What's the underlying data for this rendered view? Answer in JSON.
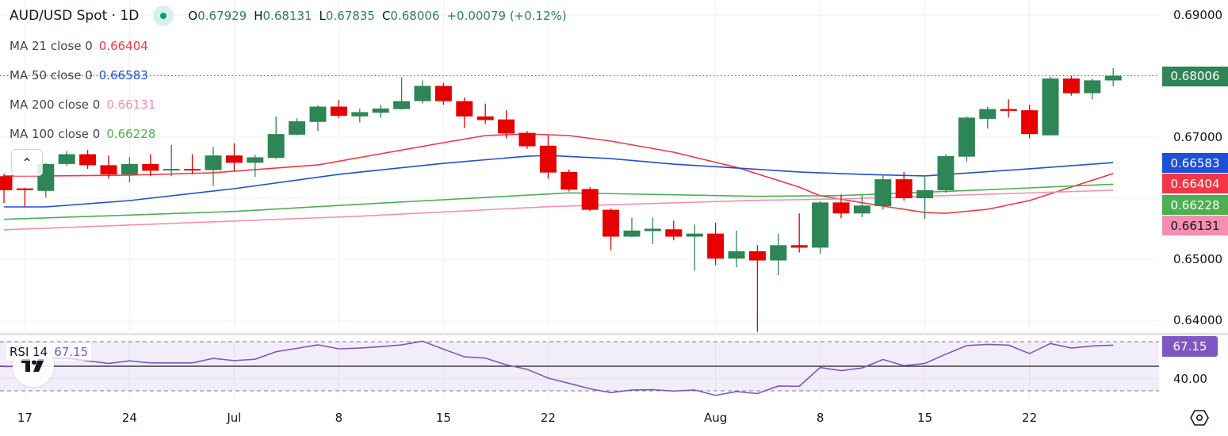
{
  "header": {
    "title": "AUD/USD Spot · 1D",
    "status_color": "#089981",
    "ohlc": [
      {
        "key": "O",
        "value": "0.67929"
      },
      {
        "key": "H",
        "value": "0.68131"
      },
      {
        "key": "L",
        "value": "0.67835"
      },
      {
        "key": "C",
        "value": "0.68006"
      }
    ],
    "change": "+0.00079 (+0.12%)"
  },
  "legend": [
    {
      "label": "MA 21 close 0",
      "value": "0.66404",
      "color": "#f23645"
    },
    {
      "label": "MA 50 close 0",
      "value": "0.66583",
      "color": "#1e4fd8"
    },
    {
      "label": "MA 200 close 0",
      "value": "0.66131",
      "color": "#f48fb1"
    },
    {
      "label": "MA 100 close 0",
      "value": "0.66228",
      "color": "#4caf50"
    }
  ],
  "collapse_icon": "chevron-up",
  "rsi_legend": {
    "label": "RSI 14",
    "value": "67.15"
  },
  "price_boxes": {
    "close": {
      "value": "0.68006",
      "color": "#2e8555"
    },
    "ma50": {
      "value": "0.66583",
      "color": "#1e4fd8"
    },
    "ma21": {
      "value": "0.66404",
      "color": "#f23645"
    },
    "ma100": {
      "value": "0.66228",
      "color": "#4caf50"
    },
    "ma200": {
      "value": "0.66131",
      "color": "#f48fb1"
    },
    "rsi": {
      "value": "67.15",
      "color": "#7e57c2"
    }
  },
  "settings_icon": "gear-hexagon",
  "logo_text": "TV",
  "chart_data": {
    "type": "candlestick",
    "title": "AUD/USD Spot · 1D",
    "up_color": "#2e8555",
    "down_color": "#e60000",
    "y_ticks": [
      0.69,
      0.67,
      0.65,
      0.64
    ],
    "y_tick_labels": [
      "0.69000",
      "0.67000",
      "0.65000",
      "0.64000"
    ],
    "y_range": [
      0.6355,
      0.6924
    ],
    "grid": true,
    "x_ticks": [
      {
        "label": "17",
        "date": "Jun 17"
      },
      {
        "label": "24",
        "date": "Jun 24"
      },
      {
        "label": "Jul",
        "date": "Jul 1"
      },
      {
        "label": "8",
        "date": "Jul 8"
      },
      {
        "label": "15",
        "date": "Jul 15"
      },
      {
        "label": "22",
        "date": "Jul 22"
      },
      {
        "label": "Aug",
        "date": "Aug 1"
      },
      {
        "label": "8",
        "date": "Aug 8"
      },
      {
        "label": "15",
        "date": "Aug 15"
      },
      {
        "label": "22",
        "date": "Aug 22"
      }
    ],
    "candles_columns": [
      "date",
      "open",
      "high",
      "low",
      "close"
    ],
    "candles": [
      [
        "Jun 14",
        0.6636,
        0.664,
        0.6592,
        0.6613
      ],
      [
        "Jun 17",
        0.6616,
        0.6617,
        0.6585,
        0.6613
      ],
      [
        "Jun 18",
        0.6612,
        0.6657,
        0.6601,
        0.6656
      ],
      [
        "Jun 19",
        0.6656,
        0.6677,
        0.6653,
        0.6672
      ],
      [
        "Jun 20",
        0.6672,
        0.6679,
        0.6648,
        0.6654
      ],
      [
        "Jun 21",
        0.6654,
        0.667,
        0.6632,
        0.6639
      ],
      [
        "Jun 24",
        0.6639,
        0.6667,
        0.6626,
        0.6656
      ],
      [
        "Jun 25",
        0.6656,
        0.6672,
        0.6636,
        0.6645
      ],
      [
        "Jun 26",
        0.6647,
        0.6687,
        0.6636,
        0.6648
      ],
      [
        "Jun 27",
        0.6648,
        0.6672,
        0.6639,
        0.6647
      ],
      [
        "Jun 28",
        0.6646,
        0.6684,
        0.662,
        0.667
      ],
      [
        "Jul 1",
        0.667,
        0.669,
        0.6644,
        0.6658
      ],
      [
        "Jul 2",
        0.6658,
        0.6671,
        0.6635,
        0.6667
      ],
      [
        "Jul 3",
        0.6666,
        0.6734,
        0.6664,
        0.6705
      ],
      [
        "Jul 4",
        0.6704,
        0.6731,
        0.6703,
        0.6726
      ],
      [
        "Jul 5",
        0.6725,
        0.6752,
        0.671,
        0.675
      ],
      [
        "Jul 8",
        0.675,
        0.6761,
        0.6731,
        0.6735
      ],
      [
        "Jul 9",
        0.6734,
        0.6747,
        0.6724,
        0.6741
      ],
      [
        "Jul 10",
        0.674,
        0.6753,
        0.6732,
        0.6747
      ],
      [
        "Jul 11",
        0.6746,
        0.6798,
        0.6745,
        0.6759
      ],
      [
        "Jul 12",
        0.6759,
        0.6793,
        0.6755,
        0.6784
      ],
      [
        "Jul 15",
        0.6784,
        0.6789,
        0.6753,
        0.6759
      ],
      [
        "Jul 16",
        0.6759,
        0.6765,
        0.6715,
        0.6734
      ],
      [
        "Jul 17",
        0.6734,
        0.6755,
        0.6722,
        0.6728
      ],
      [
        "Jul 18",
        0.6729,
        0.6744,
        0.6698,
        0.6706
      ],
      [
        "Jul 19",
        0.6707,
        0.671,
        0.6681,
        0.6685
      ],
      [
        "Jul 22",
        0.6686,
        0.6703,
        0.6632,
        0.6642
      ],
      [
        "Jul 23",
        0.6643,
        0.6647,
        0.6611,
        0.6614
      ],
      [
        "Jul 24",
        0.6615,
        0.6618,
        0.6579,
        0.6581
      ],
      [
        "Jul 25",
        0.6581,
        0.6583,
        0.6515,
        0.6537
      ],
      [
        "Jul 26",
        0.6537,
        0.6568,
        0.6536,
        0.6547
      ],
      [
        "Jul 29",
        0.6546,
        0.6568,
        0.6525,
        0.655
      ],
      [
        "Jul 30",
        0.6549,
        0.6563,
        0.6531,
        0.6537
      ],
      [
        "Jul 31",
        0.6537,
        0.6557,
        0.6481,
        0.6542
      ],
      [
        "Aug 1",
        0.6542,
        0.656,
        0.649,
        0.6501
      ],
      [
        "Aug 2",
        0.6501,
        0.6547,
        0.6487,
        0.6513
      ],
      [
        "Aug 5",
        0.6513,
        0.6523,
        0.6381,
        0.6498
      ],
      [
        "Aug 6",
        0.6498,
        0.6542,
        0.6474,
        0.6523
      ],
      [
        "Aug 7",
        0.6523,
        0.6575,
        0.6511,
        0.6519
      ],
      [
        "Aug 8",
        0.6519,
        0.6595,
        0.6509,
        0.6593
      ],
      [
        "Aug 9",
        0.6593,
        0.6606,
        0.6567,
        0.6575
      ],
      [
        "Aug 12",
        0.6575,
        0.6605,
        0.6569,
        0.6588
      ],
      [
        "Aug 13",
        0.6587,
        0.6639,
        0.6581,
        0.6631
      ],
      [
        "Aug 14",
        0.6631,
        0.6643,
        0.6596,
        0.66
      ],
      [
        "Aug 15",
        0.66,
        0.6635,
        0.6566,
        0.6613
      ],
      [
        "Aug 16",
        0.6613,
        0.6672,
        0.6609,
        0.6669
      ],
      [
        "Aug 19",
        0.6668,
        0.6734,
        0.666,
        0.6732
      ],
      [
        "Aug 20",
        0.673,
        0.675,
        0.6714,
        0.6746
      ],
      [
        "Aug 21",
        0.6746,
        0.6762,
        0.6732,
        0.6743
      ],
      [
        "Aug 22",
        0.6744,
        0.6753,
        0.6698,
        0.6705
      ],
      [
        "Aug 23",
        0.6703,
        0.6799,
        0.6703,
        0.6796
      ],
      [
        "Aug 26",
        0.6796,
        0.68,
        0.6768,
        0.6772
      ],
      [
        "Aug 27",
        0.6772,
        0.6796,
        0.6762,
        0.6793
      ],
      [
        "Aug 28",
        0.67929,
        0.68131,
        0.67835,
        0.68006
      ]
    ],
    "last_close": 0.68006,
    "moving_averages": [
      {
        "name": "MA 21 close 0",
        "color": "#f23645",
        "points": [
          [
            "Jun 14",
            0.66364
          ],
          [
            "Jun 18",
            0.66364
          ],
          [
            "Jun 24",
            0.66377
          ],
          [
            "Jun 28",
            0.66416
          ],
          [
            "Jul 5",
            0.66545
          ],
          [
            "Jul 10",
            0.66727
          ],
          [
            "Jul 15",
            0.66909
          ],
          [
            "Jul 17",
            0.67026
          ],
          [
            "Jul 19",
            0.67052
          ],
          [
            "Jul 23",
            0.67026
          ],
          [
            "Jul 25",
            0.66935
          ],
          [
            "Jul 30",
            0.66753
          ],
          [
            "Aug 2",
            0.66506
          ],
          [
            "Aug 7",
            0.66182
          ],
          [
            "Aug 8",
            0.66039
          ],
          [
            "Aug 13",
            0.6587
          ],
          [
            "Aug 15",
            0.65766
          ],
          [
            "Aug 16",
            0.65753
          ],
          [
            "Aug 20",
            0.65818
          ],
          [
            "Aug 22",
            0.65961
          ],
          [
            "Aug 28",
            0.66404
          ]
        ]
      },
      {
        "name": "MA 50 close 0",
        "color": "#1e4fd8",
        "points": [
          [
            "Jun 14",
            0.65857
          ],
          [
            "Jun 18",
            0.65857
          ],
          [
            "Jun 24",
            0.65961
          ],
          [
            "Jul 1",
            0.66156
          ],
          [
            "Jul 8",
            0.6639
          ],
          [
            "Jul 15",
            0.66571
          ],
          [
            "Jul 19",
            0.66688
          ],
          [
            "Jul 22",
            0.66701
          ],
          [
            "Jul 25",
            0.66649
          ],
          [
            "Jul 30",
            0.66558
          ],
          [
            "Aug 2",
            0.66494
          ],
          [
            "Aug 7",
            0.66429
          ],
          [
            "Aug 12",
            0.6639
          ],
          [
            "Aug 15",
            0.66364
          ],
          [
            "Aug 22",
            0.66481
          ],
          [
            "Aug 28",
            0.66583
          ]
        ]
      },
      {
        "name": "MA 100 close 0",
        "color": "#4caf50",
        "points": [
          [
            "Jun 14",
            0.65653
          ],
          [
            "Jul 1",
            0.65783
          ],
          [
            "Jul 9",
            0.659
          ],
          [
            "Jul 23",
            0.66087
          ],
          [
            "Aug 5",
            0.6603
          ],
          [
            "Aug 9",
            0.66043
          ],
          [
            "Aug 20",
            0.66139
          ],
          [
            "Aug 28",
            0.66228
          ]
        ]
      },
      {
        "name": "MA 200 close 0",
        "color": "#f48fb1",
        "points": [
          [
            "Jun 14",
            0.65481
          ],
          [
            "Jul 9",
            0.65705
          ],
          [
            "Jul 22",
            0.65861
          ],
          [
            "Aug 5",
            0.65965
          ],
          [
            "Aug 9",
            0.65987
          ],
          [
            "Aug 28",
            0.66131
          ]
        ]
      }
    ],
    "rsi": {
      "name": "RSI 14",
      "color": "#7e57c2",
      "band": [
        30,
        70
      ],
      "middle": 50,
      "tick_labels": [
        "40.00"
      ],
      "ticks": [
        40
      ],
      "values": [
        49.7,
        50,
        56.6,
        56.6,
        54.4,
        52.3,
        54.4,
        52.7,
        52.7,
        52.7,
        56.4,
        54.6,
        55.7,
        61.8,
        64.6,
        67.4,
        64.2,
        64.8,
        65.9,
        67.4,
        70.4,
        63.9,
        57.7,
        56.6,
        51.2,
        47.5,
        40.4,
        36.1,
        31.7,
        28.5,
        30.7,
        30.9,
        29.8,
        30.7,
        26.3,
        29.4,
        27.8,
        33.9,
        33.7,
        49.0,
        46.4,
        48.6,
        55.5,
        50.5,
        52.3,
        59.8,
        66.8,
        67.8,
        67.2,
        60.3,
        68.5,
        64.8,
        66.5,
        67.15
      ]
    }
  }
}
